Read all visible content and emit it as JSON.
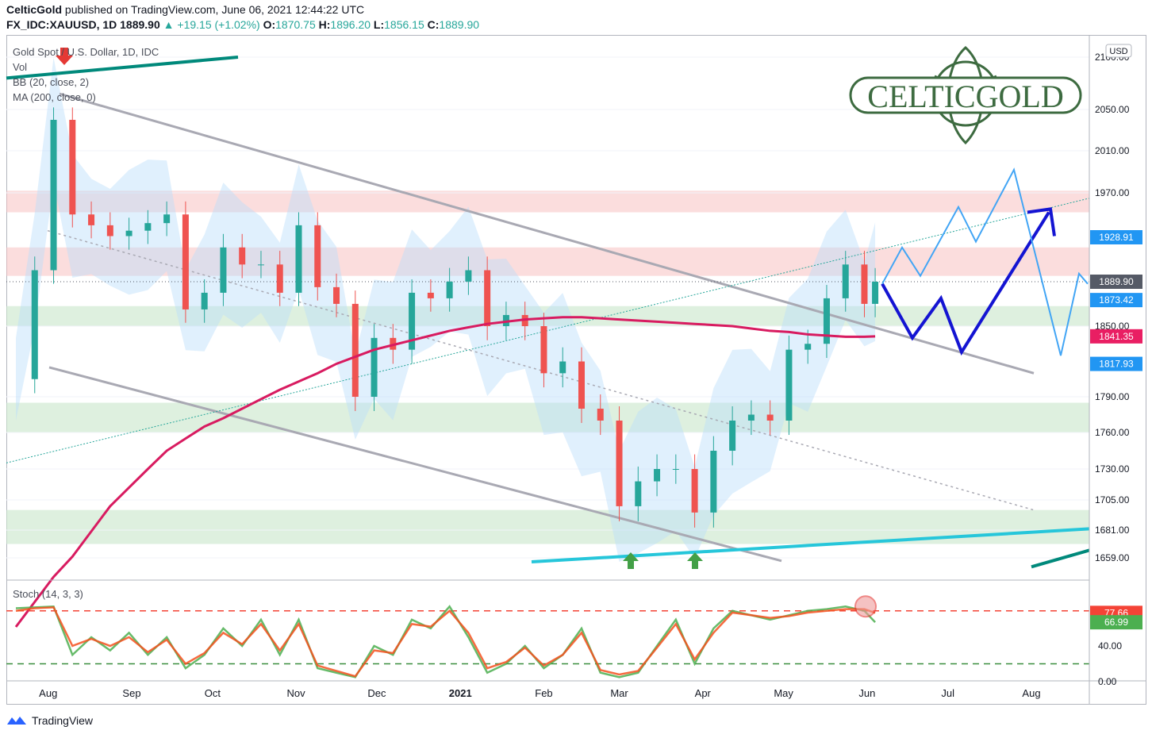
{
  "header": {
    "author": "CelticGold",
    "published": "published on TradingView.com, June 06, 2021 12:44:22 UTC",
    "symbol": "FX_IDC:XAUUSD, 1D",
    "last": "1889.90",
    "arrow": "▲",
    "change": "+19.15 (+1.02%)",
    "o_label": "O:",
    "o": "1870.75",
    "h_label": "H:",
    "h": "1896.20",
    "l_label": "L:",
    "l": "1856.15",
    "c_label": "C:",
    "c": "1889.90"
  },
  "legend": {
    "title": "Gold Spot / U.S. Dollar, 1D, IDC",
    "vol": "Vol",
    "bb": "BB (20, close, 2)",
    "ma": "MA (200, close, 0)",
    "stoch": "Stoch (14, 3, 3)"
  },
  "logo": {
    "text": "CELTICGOLD"
  },
  "currency": "USD",
  "price_labels": [
    {
      "value": 1928.91,
      "text": "1928.91",
      "color": "#2196f3"
    },
    {
      "value": 1889.9,
      "text": "1889.90",
      "color": "#555a66"
    },
    {
      "value": 1873.42,
      "text": "1873.42",
      "color": "#2196f3"
    },
    {
      "value": 1841.35,
      "text": "1841.35",
      "color": "#e91e63"
    },
    {
      "value": 1817.93,
      "text": "1817.93",
      "color": "#2196f3"
    }
  ],
  "stoch_labels": [
    {
      "value": 77.66,
      "text": "77.66",
      "color": "#f44336"
    },
    {
      "value": 66.99,
      "text": "66.99",
      "color": "#4caf50"
    }
  ],
  "footer": {
    "brand": "TradingView"
  },
  "colors": {
    "up": "#26a69a",
    "down": "#ef5350",
    "ma": "#d81b60",
    "bb_fill": "#bbdefb",
    "resistance": "#f8bbbb",
    "support": "#c8e6c9",
    "forecast_dark": "#1414d2",
    "forecast_light": "#42a5f5"
  },
  "chart_data": [
    {
      "type": "line",
      "title": "Gold Spot / U.S. Dollar, 1D, IDC",
      "yaxis_ticks": [
        2100,
        2050,
        2010,
        1970,
        1850,
        1790,
        1760,
        1730,
        1705,
        1681,
        1659
      ],
      "yaxis_tick_labels": [
        "2100.00",
        "2050.00",
        "2010.00",
        "1970.00",
        "1850.00",
        "1790.00",
        "1760.00",
        "1730.00",
        "1705.00",
        "1681.00",
        "1659.00"
      ],
      "xaxis_labels": [
        "Aug",
        "Sep",
        "Oct",
        "Nov",
        "Dec",
        "2021",
        "Feb",
        "Mar",
        "Apr",
        "May",
        "Jun",
        "Jul",
        "Aug"
      ],
      "x": [
        "2020-07-20",
        "2020-07-27",
        "2020-08-03",
        "2020-08-10",
        "2020-08-17",
        "2020-08-24",
        "2020-08-31",
        "2020-09-07",
        "2020-09-14",
        "2020-09-21",
        "2020-09-28",
        "2020-10-05",
        "2020-10-12",
        "2020-10-19",
        "2020-10-26",
        "2020-11-02",
        "2020-11-09",
        "2020-11-16",
        "2020-11-23",
        "2020-11-30",
        "2020-12-07",
        "2020-12-14",
        "2020-12-21",
        "2020-12-28",
        "2021-01-04",
        "2021-01-11",
        "2021-01-18",
        "2021-01-25",
        "2021-02-01",
        "2021-02-08",
        "2021-02-15",
        "2021-02-22",
        "2021-03-01",
        "2021-03-08",
        "2021-03-15",
        "2021-03-22",
        "2021-03-29",
        "2021-04-05",
        "2021-04-12",
        "2021-04-19",
        "2021-04-26",
        "2021-05-03",
        "2021-05-10",
        "2021-05-17",
        "2021-05-24",
        "2021-05-31",
        "2021-06-04"
      ],
      "series": [
        {
          "name": "XAUUSD",
          "values": [
            1805,
            1900,
            2040,
            1950,
            1940,
            1930,
            1935,
            1942,
            1950,
            1865,
            1880,
            1920,
            1905,
            1905,
            1880,
            1940,
            1885,
            1870,
            1790,
            1840,
            1830,
            1880,
            1875,
            1890,
            1900,
            1850,
            1860,
            1850,
            1810,
            1820,
            1780,
            1770,
            1700,
            1720,
            1730,
            1730,
            1695,
            1745,
            1770,
            1775,
            1770,
            1830,
            1835,
            1875,
            1905,
            1870,
            1889.9
          ]
        },
        {
          "name": "MA (200, close, 0)",
          "values": [
            1590,
            1615,
            1640,
            1660,
            1680,
            1700,
            1715,
            1730,
            1745,
            1755,
            1765,
            1772,
            1780,
            1788,
            1796,
            1803,
            1810,
            1818,
            1824,
            1830,
            1834,
            1838,
            1842,
            1846,
            1849,
            1852,
            1854,
            1856,
            1857,
            1858,
            1858,
            1857,
            1856,
            1855,
            1854,
            1853,
            1852,
            1851,
            1850,
            1848,
            1846,
            1845,
            1843,
            1842,
            1841,
            1841,
            1841.35
          ]
        }
      ]
    },
    {
      "type": "line",
      "title": "Stoch (14, 3, 3)",
      "yaxis_ticks": [
        40,
        0
      ],
      "yaxis_tick_labels": [
        "40.00",
        "0.00"
      ],
      "series": [
        {
          "name": "%K",
          "values": [
            83,
            84,
            85,
            30,
            50,
            35,
            55,
            30,
            50,
            15,
            30,
            60,
            40,
            70,
            30,
            70,
            15,
            10,
            5,
            40,
            30,
            70,
            60,
            85,
            50,
            10,
            20,
            40,
            15,
            30,
            60,
            10,
            5,
            10,
            40,
            70,
            20,
            60,
            80,
            75,
            70,
            75,
            80,
            82,
            85,
            80,
            66.99
          ]
        },
        {
          "name": "%D",
          "values": [
            80,
            83,
            84,
            40,
            48,
            40,
            50,
            33,
            47,
            20,
            32,
            55,
            42,
            65,
            35,
            65,
            18,
            12,
            6,
            35,
            32,
            65,
            62,
            80,
            55,
            15,
            22,
            38,
            18,
            30,
            55,
            13,
            8,
            12,
            38,
            65,
            25,
            55,
            78,
            75,
            72,
            74,
            78,
            80,
            82,
            82,
            77.66
          ]
        }
      ]
    }
  ]
}
